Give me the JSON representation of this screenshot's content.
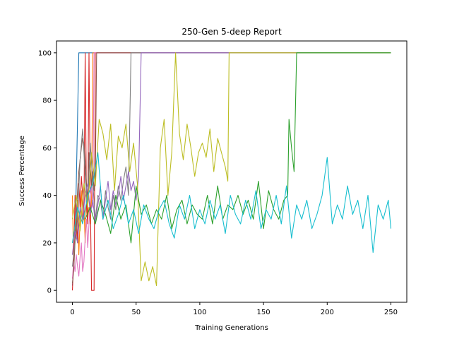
{
  "chart_data": {
    "type": "line",
    "title": "250-Gen 5-deep Report",
    "xlabel": "Training Generations",
    "ylabel": "Success Percentage",
    "xlim": [
      -12.5,
      262.5
    ],
    "ylim": [
      -5,
      105
    ],
    "xticks": [
      0,
      50,
      100,
      150,
      200,
      250
    ],
    "yticks": [
      0,
      20,
      40,
      60,
      80,
      100
    ],
    "grid": false,
    "legend": "none",
    "series": [
      {
        "color": "#1f77b4",
        "x": [
          0,
          1,
          2,
          3,
          4,
          5,
          6,
          250
        ],
        "y": [
          2,
          10,
          22,
          45,
          72,
          100,
          100,
          100
        ]
      },
      {
        "color": "#ff7f0e",
        "x": [
          0,
          1,
          2,
          3,
          4,
          5,
          6,
          7,
          8,
          9,
          10,
          11,
          12,
          13,
          14,
          15,
          16,
          250
        ],
        "y": [
          40,
          10,
          30,
          22,
          38,
          15,
          30,
          42,
          28,
          36,
          20,
          40,
          30,
          35,
          28,
          38,
          100,
          100
        ]
      },
      {
        "color": "#d62728",
        "x": [
          0,
          1,
          2,
          3,
          4,
          5,
          6,
          7,
          8,
          9,
          10,
          11,
          12,
          13,
          14,
          15,
          16,
          17,
          18,
          19,
          250
        ],
        "y": [
          0,
          12,
          40,
          30,
          20,
          45,
          35,
          48,
          40,
          30,
          100,
          36,
          28,
          100,
          40,
          0,
          0,
          0,
          100,
          100,
          100
        ]
      },
      {
        "color": "#e377c2",
        "x": [
          0,
          1,
          2,
          3,
          4,
          5,
          6,
          7,
          8,
          9,
          10,
          11,
          12,
          13,
          14,
          15,
          16,
          17,
          18,
          250
        ],
        "y": [
          5,
          12,
          8,
          15,
          10,
          6,
          14,
          20,
          8,
          12,
          22,
          30,
          18,
          28,
          40,
          44,
          35,
          100,
          100,
          100
        ]
      },
      {
        "color": "#8c564b",
        "x": [
          0,
          1,
          2,
          3,
          4,
          5,
          6,
          7,
          8,
          9,
          10,
          11,
          12,
          13,
          14,
          15,
          16,
          17,
          18,
          19,
          20,
          250
        ],
        "y": [
          3,
          8,
          20,
          30,
          42,
          50,
          55,
          60,
          64,
          62,
          54,
          45,
          38,
          58,
          52,
          44,
          50,
          42,
          48,
          100,
          100,
          100
        ]
      },
      {
        "color": "#7f7f7f",
        "x": [
          0,
          2,
          4,
          6,
          8,
          10,
          12,
          14,
          16,
          18,
          20,
          22,
          24,
          26,
          28,
          30,
          32,
          34,
          36,
          38,
          40,
          42,
          44,
          46,
          48,
          250
        ],
        "y": [
          10,
          20,
          30,
          55,
          68,
          48,
          35,
          62,
          45,
          30,
          40,
          38,
          30,
          42,
          35,
          30,
          40,
          34,
          44,
          38,
          46,
          52,
          40,
          100,
          100,
          100
        ]
      },
      {
        "color": "#9467bd",
        "x": [
          0,
          2,
          4,
          6,
          8,
          10,
          12,
          14,
          16,
          18,
          20,
          22,
          24,
          26,
          28,
          30,
          32,
          34,
          36,
          38,
          40,
          42,
          44,
          46,
          48,
          50,
          52,
          54,
          250
        ],
        "y": [
          15,
          25,
          20,
          35,
          30,
          40,
          45,
          32,
          38,
          28,
          36,
          44,
          30,
          38,
          46,
          34,
          42,
          36,
          40,
          48,
          38,
          44,
          50,
          42,
          46,
          38,
          48,
          100,
          100
        ]
      },
      {
        "color": "#bcbd22",
        "x": [
          0,
          3,
          6,
          9,
          12,
          15,
          18,
          21,
          24,
          27,
          30,
          33,
          36,
          39,
          42,
          45,
          48,
          51,
          54,
          57,
          60,
          63,
          66,
          69,
          72,
          75,
          78,
          81,
          84,
          87,
          90,
          93,
          96,
          99,
          102,
          105,
          108,
          111,
          114,
          117,
          120,
          122,
          123,
          250
        ],
        "y": [
          30,
          40,
          25,
          45,
          35,
          58,
          44,
          72,
          66,
          55,
          70,
          42,
          65,
          60,
          70,
          50,
          62,
          45,
          4,
          12,
          4,
          10,
          2,
          60,
          72,
          40,
          58,
          100,
          66,
          55,
          70,
          60,
          48,
          58,
          62,
          56,
          68,
          50,
          64,
          58,
          52,
          46,
          100,
          100
        ]
      },
      {
        "color": "#2ca02c",
        "x": [
          10,
          14,
          18,
          22,
          26,
          30,
          34,
          38,
          42,
          46,
          50,
          54,
          58,
          62,
          66,
          70,
          74,
          78,
          82,
          86,
          90,
          94,
          98,
          102,
          106,
          110,
          114,
          118,
          122,
          126,
          130,
          134,
          138,
          142,
          146,
          150,
          154,
          158,
          162,
          166,
          169,
          170,
          172,
          174,
          176,
          250
        ],
        "y": [
          30,
          35,
          28,
          38,
          32,
          24,
          40,
          30,
          36,
          20,
          44,
          32,
          36,
          28,
          34,
          30,
          40,
          26,
          34,
          38,
          28,
          36,
          32,
          30,
          40,
          28,
          44,
          30,
          36,
          34,
          40,
          32,
          38,
          30,
          46,
          26,
          42,
          34,
          30,
          38,
          40,
          72,
          60,
          50,
          100,
          100
        ]
      },
      {
        "color": "#17becf",
        "x": [
          0,
          4,
          8,
          12,
          16,
          20,
          24,
          28,
          32,
          36,
          40,
          44,
          48,
          52,
          56,
          60,
          64,
          68,
          72,
          76,
          80,
          84,
          88,
          92,
          96,
          100,
          104,
          108,
          112,
          116,
          120,
          124,
          128,
          132,
          136,
          140,
          144,
          148,
          152,
          156,
          160,
          164,
          168,
          172,
          176,
          180,
          184,
          188,
          192,
          196,
          200,
          204,
          208,
          212,
          216,
          220,
          224,
          228,
          232,
          236,
          240,
          244,
          248,
          250
        ],
        "y": [
          20,
          35,
          28,
          40,
          45,
          58,
          30,
          38,
          26,
          32,
          40,
          28,
          34,
          24,
          36,
          30,
          26,
          34,
          38,
          28,
          22,
          36,
          30,
          40,
          26,
          34,
          28,
          38,
          30,
          36,
          24,
          40,
          32,
          28,
          38,
          30,
          42,
          26,
          34,
          30,
          40,
          28,
          44,
          22,
          36,
          30,
          38,
          26,
          32,
          40,
          56,
          28,
          36,
          30,
          44,
          32,
          38,
          26,
          40,
          16,
          36,
          30,
          38,
          26
        ]
      }
    ]
  }
}
